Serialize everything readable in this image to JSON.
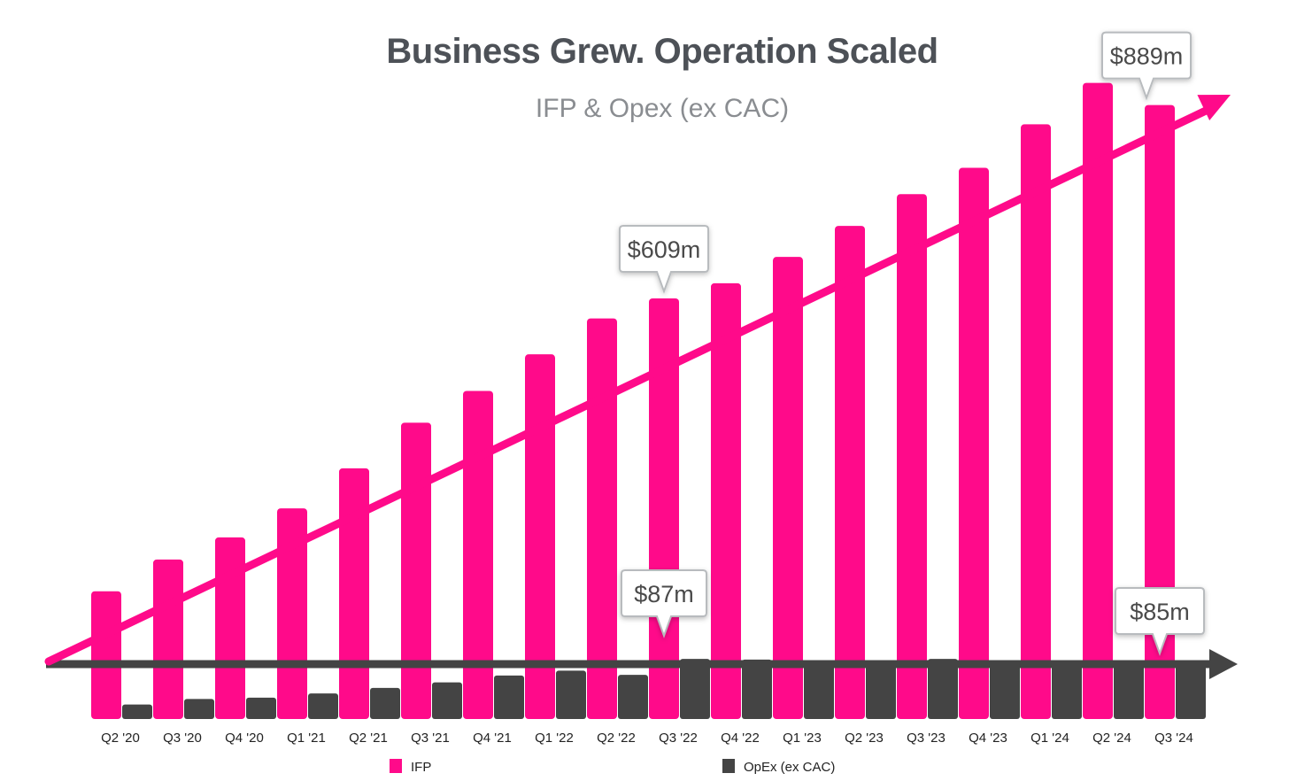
{
  "chart_data": {
    "type": "bar",
    "title": "Business Grew. Operation Scaled",
    "subtitle": "IFP & Opex (ex CAC)",
    "categories": [
      "Q2 '20",
      "Q3 '20",
      "Q4 '20",
      "Q1 '21",
      "Q2 '21",
      "Q3 '21",
      "Q4 '21",
      "Q1 '22",
      "Q2 '22",
      "Q3 '22",
      "Q4 '22",
      "Q1 '23",
      "Q2 '23",
      "Q3 '23",
      "Q4 '23",
      "Q1 '24",
      "Q2 '24",
      "Q3 '24"
    ],
    "series": [
      {
        "name": "IFP",
        "color": "#ff0a8a",
        "values": [
          185,
          231,
          263,
          305,
          363,
          429,
          475,
          528,
          580,
          609,
          631,
          669,
          714,
          760,
          798,
          861,
          921,
          889
        ]
      },
      {
        "name": "OpEx (ex CAC)",
        "color": "#444444",
        "values": [
          21,
          29,
          31,
          37,
          45,
          53,
          63,
          70,
          64,
          87,
          86,
          84,
          84,
          87,
          85,
          85,
          85,
          85
        ]
      }
    ],
    "callouts": [
      {
        "text": "$609m",
        "series": 0,
        "index": 9
      },
      {
        "text": "$889m",
        "series": 0,
        "index": 17
      },
      {
        "text": "$87m",
        "series": 1,
        "index": 9
      },
      {
        "text": "$85m",
        "series": 1,
        "index": 17
      }
    ],
    "trend_arrows": [
      {
        "direction": "up",
        "color": "#ff0a8a"
      },
      {
        "direction": "flat",
        "color": "#444444"
      }
    ],
    "legend": {
      "placement": "bottom",
      "items": [
        "IFP",
        "OpEx (ex CAC)"
      ]
    },
    "grid": false,
    "xlabel": "",
    "ylabel": ""
  }
}
